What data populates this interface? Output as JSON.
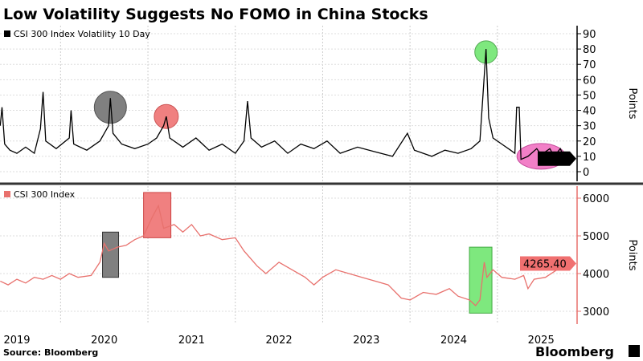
{
  "title": "Low Volatility Suggests No FOMO in China Stocks",
  "source": "Source: Bloomberg",
  "brand": "Bloomberg",
  "colors": {
    "volatility": "#000000",
    "index": "#e8716d",
    "highlight_gray": "#808080",
    "highlight_red": "#f08080",
    "highlight_green": "#7ee87e",
    "highlight_pink": "#f27fc7"
  },
  "chart_data": [
    {
      "type": "line",
      "legend": "CSI 300 Index Volatility 10 Day",
      "ylabel": "Points",
      "ylim": [
        -5,
        92
      ],
      "yticks": [
        0,
        10,
        20,
        30,
        40,
        50,
        60,
        70,
        80,
        90
      ],
      "grid": true,
      "legend_placement": "top-left",
      "last_value_label": "8.50",
      "points": [
        [
          2019.31,
          30
        ],
        [
          2019.33,
          42
        ],
        [
          2019.36,
          18
        ],
        [
          2019.42,
          14
        ],
        [
          2019.5,
          12
        ],
        [
          2019.6,
          16
        ],
        [
          2019.7,
          12
        ],
        [
          2019.77,
          28
        ],
        [
          2019.8,
          52
        ],
        [
          2019.83,
          20
        ],
        [
          2019.95,
          15
        ],
        [
          2020.1,
          22
        ],
        [
          2020.12,
          40
        ],
        [
          2020.15,
          18
        ],
        [
          2020.3,
          14
        ],
        [
          2020.45,
          20
        ],
        [
          2020.55,
          30
        ],
        [
          2020.57,
          48
        ],
        [
          2020.6,
          25
        ],
        [
          2020.7,
          18
        ],
        [
          2020.85,
          15
        ],
        [
          2021.0,
          18
        ],
        [
          2021.1,
          22
        ],
        [
          2021.18,
          30
        ],
        [
          2021.21,
          36
        ],
        [
          2021.25,
          22
        ],
        [
          2021.4,
          16
        ],
        [
          2021.55,
          22
        ],
        [
          2021.7,
          14
        ],
        [
          2021.85,
          18
        ],
        [
          2022.0,
          12
        ],
        [
          2022.1,
          20
        ],
        [
          2022.14,
          46
        ],
        [
          2022.18,
          22
        ],
        [
          2022.3,
          16
        ],
        [
          2022.45,
          20
        ],
        [
          2022.6,
          12
        ],
        [
          2022.75,
          18
        ],
        [
          2022.9,
          15
        ],
        [
          2023.05,
          20
        ],
        [
          2023.2,
          12
        ],
        [
          2023.4,
          16
        ],
        [
          2023.6,
          13
        ],
        [
          2023.8,
          10
        ],
        [
          2023.97,
          25
        ],
        [
          2024.05,
          14
        ],
        [
          2024.25,
          10
        ],
        [
          2024.4,
          14
        ],
        [
          2024.55,
          12
        ],
        [
          2024.7,
          15
        ],
        [
          2024.8,
          20
        ],
        [
          2024.87,
          80
        ],
        [
          2024.9,
          35
        ],
        [
          2024.95,
          22
        ],
        [
          2025.05,
          18
        ],
        [
          2025.15,
          14
        ],
        [
          2025.2,
          12
        ],
        [
          2025.22,
          42
        ],
        [
          2025.25,
          42
        ],
        [
          2025.27,
          8
        ],
        [
          2025.35,
          10
        ],
        [
          2025.45,
          15
        ],
        [
          2025.5,
          11
        ],
        [
          2025.6,
          15
        ],
        [
          2025.65,
          10
        ],
        [
          2025.72,
          15
        ],
        [
          2025.77,
          8.5
        ]
      ]
    },
    {
      "type": "line",
      "legend": "CSI 300 Index",
      "ylabel": "Points",
      "ylim": [
        2800,
        6300
      ],
      "yticks": [
        3000,
        4000,
        5000,
        6000
      ],
      "grid": true,
      "legend_placement": "top-left",
      "last_value_label": "4265.40",
      "points": [
        [
          2019.31,
          3800
        ],
        [
          2019.4,
          3700
        ],
        [
          2019.5,
          3850
        ],
        [
          2019.6,
          3750
        ],
        [
          2019.7,
          3900
        ],
        [
          2019.8,
          3850
        ],
        [
          2019.9,
          3950
        ],
        [
          2020.0,
          3850
        ],
        [
          2020.1,
          4000
        ],
        [
          2020.2,
          3900
        ],
        [
          2020.35,
          3950
        ],
        [
          2020.45,
          4300
        ],
        [
          2020.5,
          4800
        ],
        [
          2020.55,
          4600
        ],
        [
          2020.65,
          4700
        ],
        [
          2020.75,
          4750
        ],
        [
          2020.85,
          4900
        ],
        [
          2020.95,
          5000
        ],
        [
          2021.05,
          5500
        ],
        [
          2021.12,
          5800
        ],
        [
          2021.18,
          5200
        ],
        [
          2021.3,
          5300
        ],
        [
          2021.4,
          5100
        ],
        [
          2021.5,
          5300
        ],
        [
          2021.6,
          5000
        ],
        [
          2021.7,
          5050
        ],
        [
          2021.85,
          4900
        ],
        [
          2022.0,
          4950
        ],
        [
          2022.1,
          4600
        ],
        [
          2022.25,
          4200
        ],
        [
          2022.35,
          4000
        ],
        [
          2022.5,
          4300
        ],
        [
          2022.65,
          4100
        ],
        [
          2022.8,
          3900
        ],
        [
          2022.9,
          3700
        ],
        [
          2023.0,
          3900
        ],
        [
          2023.15,
          4100
        ],
        [
          2023.3,
          4000
        ],
        [
          2023.45,
          3900
        ],
        [
          2023.6,
          3800
        ],
        [
          2023.75,
          3700
        ],
        [
          2023.9,
          3350
        ],
        [
          2024.0,
          3300
        ],
        [
          2024.15,
          3500
        ],
        [
          2024.3,
          3450
        ],
        [
          2024.45,
          3600
        ],
        [
          2024.55,
          3400
        ],
        [
          2024.68,
          3300
        ],
        [
          2024.75,
          3150
        ],
        [
          2024.8,
          3300
        ],
        [
          2024.85,
          4300
        ],
        [
          2024.88,
          3900
        ],
        [
          2024.95,
          4100
        ],
        [
          2025.05,
          3900
        ],
        [
          2025.2,
          3850
        ],
        [
          2025.3,
          3950
        ],
        [
          2025.35,
          3600
        ],
        [
          2025.42,
          3850
        ],
        [
          2025.55,
          3900
        ],
        [
          2025.65,
          4050
        ],
        [
          2025.72,
          4150
        ],
        [
          2025.77,
          4265.4
        ]
      ]
    }
  ],
  "x_axis": {
    "ticks": [
      "2019",
      "2020",
      "2021",
      "2022",
      "2023",
      "2024",
      "2025"
    ]
  }
}
